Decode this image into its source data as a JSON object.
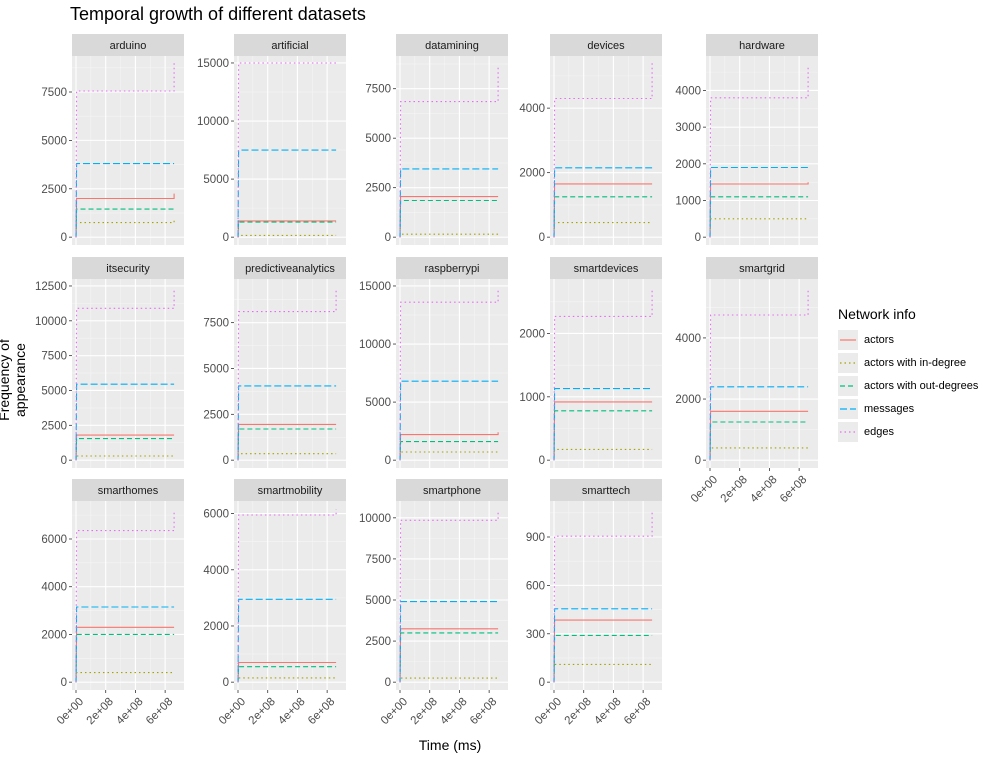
{
  "title": "Temporal growth of different datasets",
  "xlabel": "Time (ms)",
  "ylabel": "Frequency of appearance",
  "legend": {
    "title": "Network info",
    "items": [
      {
        "label": "actors",
        "color": "#F8766D",
        "dash": "solid"
      },
      {
        "label": "actors with in-degree",
        "color": "#A3A500",
        "dash": "dotted"
      },
      {
        "label": "actors with out-degrees",
        "color": "#00BF7D",
        "dash": "dashed"
      },
      {
        "label": "messages",
        "color": "#00B0F6",
        "dash": "longdash"
      },
      {
        "label": "edges",
        "color": "#E76BF3",
        "dash": "dotted"
      }
    ]
  },
  "chart_data": {
    "type": "line",
    "facet_layout": "wrap",
    "x_ticks": [
      "0e+00",
      "2e+08",
      "4e+08",
      "6e+08"
    ],
    "x_tick_values": [
      0,
      200000000,
      400000000,
      600000000
    ],
    "xlim": [
      0,
      700000000
    ],
    "legend_position": "right",
    "grid": true,
    "panels": [
      {
        "name": "arduino",
        "ylim": [
          0,
          9000
        ],
        "y_ticks": [
          0,
          2500,
          5000,
          7500
        ],
        "final": {
          "actors": 2000,
          "actors with in-degree": 750,
          "actors with out-degrees": 1450,
          "messages": 3800,
          "edges": 7550
        },
        "end": {
          "actors": 2250,
          "actors with in-degree": 900,
          "actors with out-degrees": 1550,
          "messages": 3800,
          "edges": 9000
        }
      },
      {
        "name": "artificial",
        "ylim": [
          0,
          15000
        ],
        "y_ticks": [
          0,
          5000,
          10000,
          15000
        ],
        "final": {
          "actors": 1400,
          "actors with in-degree": 150,
          "actors with out-degrees": 1300,
          "messages": 7500,
          "edges": 15000
        },
        "end": {
          "actors": 1400,
          "actors with in-degree": 150,
          "actors with out-degrees": 1300,
          "messages": 7500,
          "edges": 15000
        }
      },
      {
        "name": "datamining",
        "ylim": [
          0,
          8800
        ],
        "y_ticks": [
          0,
          2500,
          5000,
          7500
        ],
        "final": {
          "actors": 2050,
          "actors with in-degree": 150,
          "actors with out-degrees": 1850,
          "messages": 3450,
          "edges": 6850
        },
        "end": {
          "actors": 2050,
          "actors with in-degree": 150,
          "actors with out-degrees": 1850,
          "messages": 3450,
          "edges": 8700
        }
      },
      {
        "name": "devices",
        "ylim": [
          0,
          5400
        ],
        "y_ticks": [
          0,
          2000,
          4000
        ],
        "final": {
          "actors": 1650,
          "actors with in-degree": 450,
          "actors with out-degrees": 1250,
          "messages": 2150,
          "edges": 4300
        },
        "end": {
          "actors": 1650,
          "actors with in-degree": 450,
          "actors with out-degrees": 1250,
          "messages": 2150,
          "edges": 5400
        }
      },
      {
        "name": "hardware",
        "ylim": [
          0,
          4750
        ],
        "y_ticks": [
          0,
          1000,
          2000,
          3000,
          4000
        ],
        "final": {
          "actors": 1450,
          "actors with in-degree": 500,
          "actors with out-degrees": 1100,
          "messages": 1900,
          "edges": 3800
        },
        "end": {
          "actors": 1500,
          "actors with in-degree": 500,
          "actors with out-degrees": 1100,
          "messages": 1900,
          "edges": 4650
        }
      },
      {
        "name": "itsecurity",
        "ylim": [
          0,
          12500
        ],
        "y_ticks": [
          0,
          2500,
          5000,
          7500,
          10000,
          12500
        ],
        "final": {
          "actors": 1800,
          "actors with in-degree": 300,
          "actors with out-degrees": 1550,
          "messages": 5450,
          "edges": 10900
        },
        "end": {
          "actors": 1800,
          "actors with in-degree": 300,
          "actors with out-degrees": 1550,
          "messages": 5450,
          "edges": 12200
        }
      },
      {
        "name": "predictiveanalytics",
        "ylim": [
          0,
          9500
        ],
        "y_ticks": [
          0,
          2500,
          5000,
          7500
        ],
        "final": {
          "actors": 1950,
          "actors with in-degree": 350,
          "actors with out-degrees": 1700,
          "messages": 4050,
          "edges": 8100
        },
        "end": {
          "actors": 1950,
          "actors with in-degree": 350,
          "actors with out-degrees": 1700,
          "messages": 4050,
          "edges": 9300
        }
      },
      {
        "name": "raspberrypi",
        "ylim": [
          0,
          15000
        ],
        "y_ticks": [
          0,
          5000,
          10000,
          15000
        ],
        "final": {
          "actors": 2200,
          "actors with in-degree": 700,
          "actors with out-degrees": 1600,
          "messages": 6800,
          "edges": 13600
        },
        "end": {
          "actors": 2400,
          "actors with in-degree": 700,
          "actors with out-degrees": 1600,
          "messages": 6800,
          "edges": 14800
        }
      },
      {
        "name": "smartdevices",
        "ylim": [
          0,
          2750
        ],
        "y_ticks": [
          0,
          1000,
          2000
        ],
        "final": {
          "actors": 920,
          "actors with in-degree": 170,
          "actors with out-degrees": 780,
          "messages": 1130,
          "edges": 2270
        },
        "end": {
          "actors": 920,
          "actors with in-degree": 170,
          "actors with out-degrees": 780,
          "messages": 1130,
          "edges": 2700
        }
      },
      {
        "name": "smartgrid",
        "ylim": [
          0,
          5700
        ],
        "y_ticks": [
          0,
          2000,
          4000
        ],
        "final": {
          "actors": 1600,
          "actors with in-degree": 400,
          "actors with out-degrees": 1250,
          "messages": 2400,
          "edges": 4750
        },
        "end": {
          "actors": 1600,
          "actors with in-degree": 400,
          "actors with out-degrees": 1250,
          "messages": 2400,
          "edges": 5600
        }
      },
      {
        "name": "smarthomes",
        "ylim": [
          0,
          7300
        ],
        "y_ticks": [
          0,
          2000,
          4000,
          6000
        ],
        "final": {
          "actors": 2300,
          "actors with in-degree": 400,
          "actors with out-degrees": 2000,
          "messages": 3150,
          "edges": 6350
        },
        "end": {
          "actors": 2300,
          "actors with in-degree": 400,
          "actors with out-degrees": 2000,
          "messages": 3150,
          "edges": 7200
        }
      },
      {
        "name": "smartmobility",
        "ylim": [
          0,
          6200
        ],
        "y_ticks": [
          0,
          2000,
          4000,
          6000
        ],
        "final": {
          "actors": 700,
          "actors with in-degree": 150,
          "actors with out-degrees": 550,
          "messages": 2950,
          "edges": 5950
        },
        "end": {
          "actors": 700,
          "actors with in-degree": 150,
          "actors with out-degrees": 550,
          "messages": 2950,
          "edges": 6150
        }
      },
      {
        "name": "smartphone",
        "ylim": [
          0,
          10600
        ],
        "y_ticks": [
          0,
          2500,
          5000,
          7500,
          10000
        ],
        "final": {
          "actors": 3250,
          "actors with in-degree": 250,
          "actors with out-degrees": 3000,
          "messages": 4900,
          "edges": 9850
        },
        "end": {
          "actors": 3250,
          "actors with in-degree": 250,
          "actors with out-degrees": 3000,
          "messages": 4900,
          "edges": 10400
        }
      },
      {
        "name": "smarttech",
        "ylim": [
          0,
          1080
        ],
        "y_ticks": [
          0,
          300,
          600,
          900
        ],
        "final": {
          "actors": 385,
          "actors with in-degree": 110,
          "actors with out-degrees": 290,
          "messages": 455,
          "edges": 905
        },
        "end": {
          "actors": 385,
          "actors with in-degree": 110,
          "actors with out-degrees": 290,
          "messages": 455,
          "edges": 1050
        }
      }
    ]
  }
}
